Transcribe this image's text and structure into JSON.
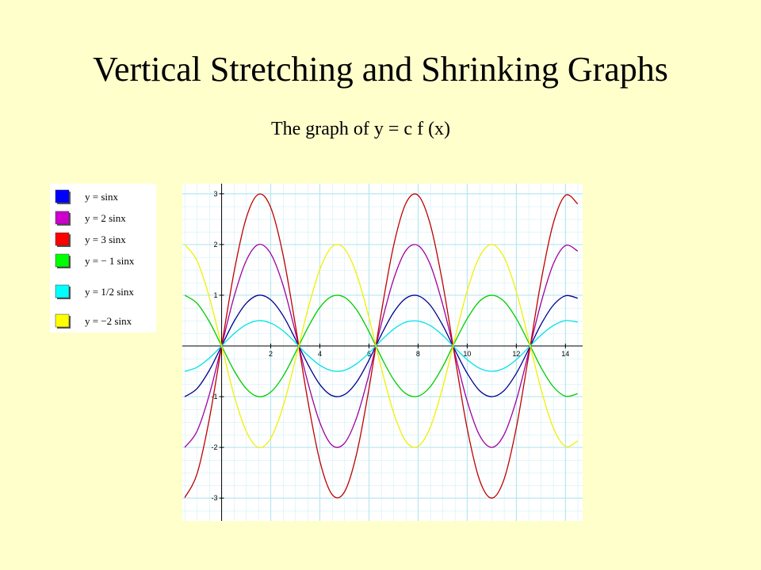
{
  "chart_data": {
    "type": "line",
    "title": "Vertical Stretching and Shrinking Graphs",
    "subtitle": "The graph of y = c f (x)",
    "x": [
      -1.5,
      -1,
      -0.5,
      0,
      0.5,
      1,
      1.5,
      2,
      2.5,
      3,
      3.5,
      4,
      4.5,
      5,
      5.5,
      6,
      6.5,
      7,
      7.5,
      8,
      8.5,
      9,
      9.5,
      10,
      10.5,
      11,
      11.5,
      12,
      12.5,
      13,
      13.5,
      14,
      14.5
    ],
    "series": [
      {
        "name": "y =  sinx",
        "color": "#000090",
        "swatch": "#0000ff",
        "values": [
          -1.0,
          -0.84,
          -0.48,
          0,
          0.48,
          0.84,
          1.0,
          0.91,
          0.6,
          0.14,
          -0.35,
          -0.76,
          -0.98,
          -0.96,
          -0.71,
          -0.28,
          0.22,
          0.66,
          0.94,
          0.99,
          0.8,
          0.41,
          -0.08,
          -0.54,
          -0.88,
          -1.0,
          -0.88,
          -0.54,
          -0.07,
          0.42,
          0.8,
          0.99,
          0.94
        ]
      },
      {
        "name": "y = 2 sinx",
        "color": "#a000a0",
        "swatch": "#cc00cc",
        "values": [
          -2.0,
          -1.68,
          -0.96,
          0,
          0.96,
          1.68,
          2.0,
          1.82,
          1.2,
          0.28,
          -0.7,
          -1.51,
          -1.96,
          -1.92,
          -1.41,
          -0.56,
          0.43,
          1.31,
          1.88,
          1.98,
          1.6,
          0.82,
          -0.15,
          -1.09,
          -1.76,
          -2.0,
          -1.75,
          -1.07,
          -0.13,
          0.84,
          1.61,
          1.98,
          1.87
        ]
      },
      {
        "name": "y = 3 sinx",
        "color": "#c00000",
        "swatch": "#ff0000",
        "values": [
          -2.99,
          -2.52,
          -1.44,
          0,
          1.44,
          2.52,
          2.99,
          2.73,
          1.8,
          0.42,
          -1.05,
          -2.27,
          -2.93,
          -2.88,
          -2.12,
          -0.84,
          0.65,
          1.97,
          2.81,
          2.97,
          2.39,
          1.24,
          -0.22,
          -1.63,
          -2.64,
          -3.0,
          -2.63,
          -1.61,
          -0.2,
          1.26,
          2.41,
          2.97,
          2.8
        ]
      },
      {
        "name": "y = − 1 sinx",
        "color": "#00cc00",
        "swatch": "#00ff00",
        "values": [
          1.0,
          0.84,
          0.48,
          0,
          -0.48,
          -0.84,
          -1.0,
          -0.91,
          -0.6,
          -0.14,
          0.35,
          0.76,
          0.98,
          0.96,
          0.71,
          0.28,
          -0.22,
          -0.66,
          -0.94,
          -0.99,
          -0.8,
          -0.41,
          0.08,
          0.54,
          0.88,
          1.0,
          0.88,
          0.54,
          0.07,
          -0.42,
          -0.8,
          -0.99,
          -0.94
        ]
      },
      {
        "name": "y = 1/2 sinx",
        "color": "#00e0e8",
        "swatch": "#00ffff",
        "values": [
          -0.5,
          -0.42,
          -0.24,
          0,
          0.24,
          0.42,
          0.5,
          0.45,
          0.3,
          0.07,
          -0.18,
          -0.38,
          -0.49,
          -0.48,
          -0.35,
          -0.14,
          0.11,
          0.33,
          0.47,
          0.49,
          0.4,
          0.21,
          -0.04,
          -0.27,
          -0.44,
          -0.5,
          -0.44,
          -0.27,
          -0.03,
          0.21,
          0.4,
          0.5,
          0.47
        ]
      },
      {
        "name": "y = −2 sinx",
        "color": "#f0f000",
        "swatch": "#ffff00",
        "values": [
          2.0,
          1.68,
          0.96,
          0,
          -0.96,
          -1.68,
          -2.0,
          -1.82,
          -1.2,
          -0.28,
          0.7,
          1.51,
          1.96,
          1.92,
          1.41,
          0.56,
          -0.43,
          -1.31,
          -1.88,
          -1.98,
          -1.6,
          -0.82,
          0.15,
          1.09,
          1.76,
          2.0,
          1.75,
          1.07,
          0.13,
          -0.84,
          -1.61,
          -1.98,
          -1.87
        ]
      }
    ],
    "xlim": [
      -1.6,
      14.7
    ],
    "ylim": [
      -3.45,
      3.2
    ],
    "xticks": [
      2,
      4,
      6,
      8,
      10,
      12,
      14
    ],
    "yticks": [
      -3,
      -2,
      -1,
      1,
      2,
      3
    ],
    "grid": true
  }
}
